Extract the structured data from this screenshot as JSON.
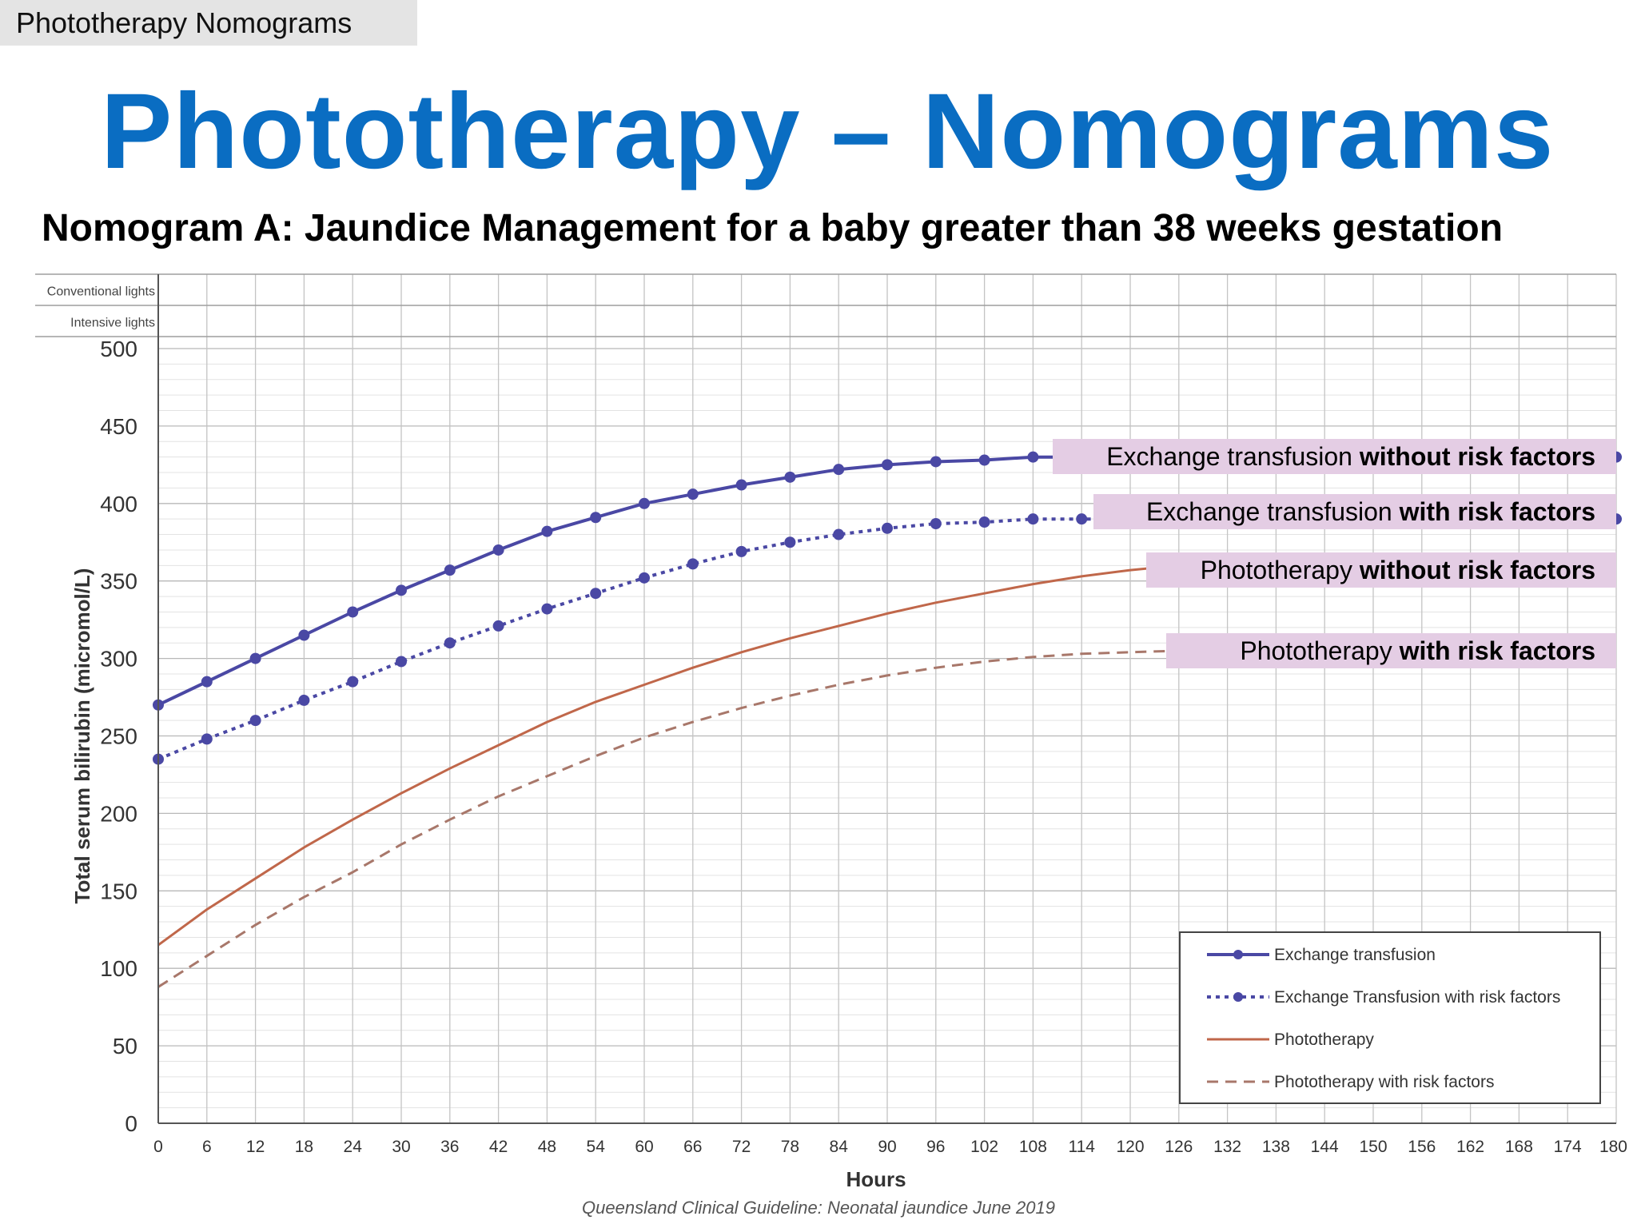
{
  "tab": "Phototherapy Nomograms",
  "title": "Phototherapy – Nomograms",
  "chart_heading": "Nomogram A: Jaundice Management for a baby greater than 38 weeks gestation",
  "source": "Queensland Clinical Guideline: Neonatal jaundice June 2019",
  "callouts": [
    {
      "normal": "Exchange transfusion ",
      "bold": "without risk factors"
    },
    {
      "normal": "Exchange transfusion ",
      "bold": "with risk factors"
    },
    {
      "normal": "Phototherapy ",
      "bold": "without risk factors"
    },
    {
      "normal": "Phototherapy ",
      "bold": "with risk factors"
    }
  ],
  "chart_data": {
    "type": "line",
    "xlabel": "Hours",
    "ylabel": "Total serum bilirubin (micromol/L)",
    "xlim": [
      0,
      180
    ],
    "ylim": [
      0,
      500
    ],
    "x_ticks": [
      0,
      6,
      12,
      18,
      24,
      30,
      36,
      42,
      48,
      54,
      60,
      66,
      72,
      78,
      84,
      90,
      96,
      102,
      108,
      114,
      120,
      126,
      132,
      138,
      144,
      150,
      156,
      162,
      168,
      174,
      180
    ],
    "y_ticks": [
      0,
      50,
      100,
      150,
      200,
      250,
      300,
      350,
      400,
      450,
      500
    ],
    "header_rows": [
      "Conventional lights",
      "Intensive lights"
    ],
    "grid": true,
    "legend_position": "bottom-right",
    "series": [
      {
        "name": "Exchange transfusion",
        "style": "solid-markers",
        "color": "#4a48a4",
        "x": [
          0,
          6,
          12,
          18,
          24,
          30,
          36,
          42,
          48,
          54,
          60,
          66,
          72,
          78,
          84,
          90,
          96,
          102,
          108,
          114,
          120,
          126,
          132,
          138,
          144,
          150,
          156,
          162,
          168,
          174,
          180
        ],
        "y": [
          270,
          285,
          300,
          315,
          330,
          344,
          357,
          370,
          382,
          391,
          400,
          406,
          412,
          417,
          422,
          425,
          427,
          428,
          430,
          430,
          430,
          430,
          430,
          430,
          430,
          430,
          430,
          430,
          430,
          430,
          430
        ]
      },
      {
        "name": "Exchange Transfusion with risk factors",
        "style": "dotted-markers",
        "color": "#4a48a4",
        "x": [
          0,
          6,
          12,
          18,
          24,
          30,
          36,
          42,
          48,
          54,
          60,
          66,
          72,
          78,
          84,
          90,
          96,
          102,
          108,
          114,
          120,
          126,
          132,
          138,
          144,
          150,
          156,
          162,
          168,
          174,
          180
        ],
        "y": [
          235,
          248,
          260,
          273,
          285,
          298,
          310,
          321,
          332,
          342,
          352,
          361,
          369,
          375,
          380,
          384,
          387,
          388,
          390,
          390,
          390,
          390,
          390,
          390,
          390,
          390,
          390,
          390,
          390,
          390,
          390
        ]
      },
      {
        "name": "Phototherapy",
        "style": "solid",
        "color": "#c0674a",
        "x": [
          0,
          6,
          12,
          18,
          24,
          30,
          36,
          42,
          48,
          54,
          60,
          66,
          72,
          78,
          84,
          90,
          96,
          102,
          108,
          114,
          120,
          126,
          132,
          138,
          144,
          150,
          156,
          162,
          168,
          174,
          180
        ],
        "y": [
          115,
          138,
          158,
          178,
          196,
          213,
          229,
          244,
          259,
          272,
          283,
          294,
          304,
          313,
          321,
          329,
          336,
          342,
          348,
          353,
          357,
          360,
          360,
          360,
          360,
          360,
          360,
          360,
          360,
          360,
          360
        ]
      },
      {
        "name": "Phototherapy with risk factors",
        "style": "dashed",
        "color": "#a8776a",
        "x": [
          0,
          6,
          12,
          18,
          24,
          30,
          36,
          42,
          48,
          54,
          60,
          66,
          72,
          78,
          84,
          90,
          96,
          102,
          108,
          114,
          120,
          126,
          132,
          138,
          144,
          150,
          156,
          162,
          168,
          174,
          180
        ],
        "y": [
          88,
          108,
          128,
          146,
          162,
          180,
          196,
          211,
          224,
          237,
          249,
          259,
          268,
          276,
          283,
          289,
          294,
          298,
          301,
          303,
          304,
          305,
          305,
          305,
          305,
          305,
          305,
          305,
          305,
          305,
          305
        ]
      }
    ]
  }
}
